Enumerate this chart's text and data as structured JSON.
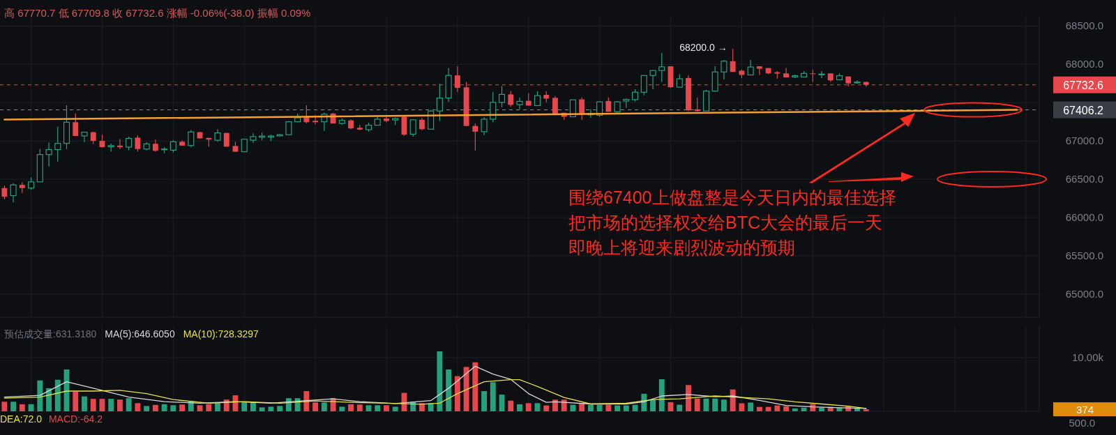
{
  "chart_data": [
    {
      "type": "candlestick",
      "categories": [
        null,
        null,
        null,
        null,
        null,
        null,
        null,
        null,
        null,
        null,
        null,
        null,
        null,
        null,
        null,
        null,
        null,
        null,
        null,
        null,
        null,
        null,
        null,
        null,
        null,
        null,
        null,
        null,
        null,
        null,
        null,
        null,
        null,
        null,
        null,
        null,
        null,
        null,
        null,
        null,
        null,
        null,
        null,
        null,
        null,
        null,
        null,
        null,
        null,
        null,
        null,
        null,
        null,
        null,
        null,
        null,
        null,
        null,
        null,
        null,
        null,
        null,
        null,
        null,
        null,
        null,
        null,
        null,
        null,
        null,
        null,
        null,
        null,
        null,
        null,
        null,
        null,
        null,
        null,
        null,
        null,
        null,
        null,
        null,
        null,
        null,
        null,
        null,
        null,
        null,
        null,
        null,
        null,
        null,
        null,
        null,
        null,
        null,
        null,
        null,
        null,
        null,
        null,
        null,
        null,
        null,
        null,
        null,
        null,
        null,
        null,
        null,
        null,
        null,
        null,
        null,
        null
      ],
      "ohlc": [
        [
          66385,
          66417,
          66239,
          66272
        ],
        [
          66287,
          66450,
          66200,
          66427
        ],
        [
          66427,
          66460,
          66320,
          66385
        ],
        [
          66385,
          66525,
          66362,
          66466
        ],
        [
          66466,
          66895,
          66466,
          66823
        ],
        [
          66823,
          66979,
          66667,
          66888
        ],
        [
          66888,
          67187,
          66732,
          66969
        ],
        [
          66969,
          67466,
          66894,
          67245
        ],
        [
          67245,
          67358,
          67066,
          67066
        ],
        [
          67066,
          67120,
          66985,
          67115
        ],
        [
          67115,
          67120,
          66960,
          67001
        ],
        [
          67001,
          67082,
          66915,
          66920
        ],
        [
          66925,
          66965,
          66862,
          66940
        ],
        [
          66940,
          67025,
          66895,
          66920
        ],
        [
          66920,
          67057,
          66880,
          67034
        ],
        [
          67044,
          67076,
          66862,
          66895
        ],
        [
          66895,
          66985,
          66880,
          66963
        ],
        [
          66963,
          67018,
          66862,
          66872
        ],
        [
          66890,
          66920,
          66840,
          66895
        ],
        [
          66880,
          67010,
          66850,
          66990
        ],
        [
          66990,
          67010,
          66940,
          66940
        ],
        [
          66940,
          67144,
          66918,
          67118
        ],
        [
          67115,
          67120,
          67034,
          67034
        ],
        [
          67040,
          67040,
          66925,
          67018
        ],
        [
          67010,
          67154,
          66990,
          67105
        ],
        [
          67105,
          67105,
          66926,
          66926
        ],
        [
          66935,
          66990,
          66860,
          66860
        ],
        [
          66860,
          67023,
          66860,
          67023
        ],
        [
          67010,
          67099,
          66978,
          67057
        ],
        [
          67050,
          67108,
          67010,
          67065
        ],
        [
          67050,
          67082,
          67000,
          67065
        ],
        [
          67066,
          67090,
          67060,
          67082
        ],
        [
          67082,
          67260,
          67082,
          67251
        ],
        [
          67251,
          67358,
          67245,
          67303
        ],
        [
          67310,
          67466,
          67229,
          67245
        ],
        [
          67264,
          67336,
          67219,
          67245
        ],
        [
          67251,
          67368,
          67131,
          67349
        ],
        [
          67358,
          67368,
          67229,
          67229
        ],
        [
          67229,
          67293,
          67213,
          67268
        ],
        [
          67268,
          67284,
          67154,
          67164
        ],
        [
          67173,
          67212,
          67141,
          67148
        ],
        [
          67148,
          67238,
          67122,
          67206
        ],
        [
          67206,
          67326,
          67206,
          67284
        ],
        [
          67293,
          67342,
          67245,
          67261
        ],
        [
          67274,
          67306,
          67209,
          67293
        ],
        [
          67316,
          67339,
          67066,
          67083
        ],
        [
          67089,
          67277,
          67057,
          67277
        ],
        [
          67277,
          67303,
          67141,
          67154
        ],
        [
          67154,
          67407,
          67154,
          67391
        ],
        [
          67391,
          67748,
          67261,
          67560
        ],
        [
          67560,
          67953,
          67511,
          67856
        ],
        [
          67856,
          67976,
          67641,
          67693
        ],
        [
          67700,
          67771,
          67196,
          67196
        ],
        [
          67196,
          67229,
          66872,
          67121
        ],
        [
          67121,
          67310,
          67075,
          67284
        ],
        [
          67284,
          67641,
          67245,
          67504
        ],
        [
          67504,
          67716,
          67440,
          67608
        ],
        [
          67608,
          67650,
          67446,
          67472
        ],
        [
          67475,
          67568,
          67413,
          67517
        ],
        [
          67524,
          67624,
          67462,
          67462
        ],
        [
          67462,
          67650,
          67462,
          67592
        ],
        [
          67602,
          67650,
          67504,
          67553
        ],
        [
          67563,
          67586,
          67336,
          67358
        ],
        [
          67368,
          67368,
          67277,
          67316
        ],
        [
          67316,
          67537,
          67316,
          67537
        ],
        [
          67543,
          67569,
          67277,
          67342
        ],
        [
          67342,
          67413,
          67303,
          67358
        ],
        [
          67336,
          67521,
          67316,
          67511
        ],
        [
          67521,
          67569,
          67381,
          67381
        ],
        [
          67381,
          67521,
          67368,
          67511
        ],
        [
          67521,
          67553,
          67433,
          67543
        ],
        [
          67540,
          67676,
          67514,
          67637
        ],
        [
          67637,
          67855,
          67595,
          67855
        ],
        [
          67855,
          67920,
          67676,
          67920
        ],
        [
          67920,
          68148,
          67771,
          67968
        ],
        [
          67975,
          67975,
          67692,
          67702
        ],
        [
          67702,
          67871,
          67702,
          67812
        ],
        [
          67822,
          67855,
          67391,
          67400
        ],
        [
          67413,
          67569,
          67381,
          67391
        ],
        [
          67391,
          67667,
          67391,
          67651
        ],
        [
          67651,
          67976,
          67651,
          67901
        ],
        [
          67901,
          68057,
          67804,
          68041
        ],
        [
          68041,
          68200,
          67901,
          67901
        ],
        [
          67917,
          67933,
          67822,
          67862
        ],
        [
          67862,
          68057,
          67862,
          67966
        ],
        [
          67975,
          67975,
          67862,
          67943
        ],
        [
          67952,
          67952,
          67873,
          67882
        ],
        [
          67897,
          67912,
          67812,
          67879
        ],
        [
          67882,
          67952,
          67830,
          67830
        ],
        [
          67836,
          67867,
          67821,
          67852
        ],
        [
          67836,
          67912,
          67836,
          67882
        ],
        [
          67882,
          67927,
          67770,
          67873
        ],
        [
          67866,
          67912,
          67821,
          67873
        ],
        [
          67882,
          67882,
          67770,
          67791
        ],
        [
          67800,
          67882,
          67800,
          67852
        ],
        [
          67842,
          67842,
          67715,
          67752
        ],
        [
          67758,
          67791,
          67745,
          67770
        ],
        [
          67770.6,
          67770.7,
          67709.8,
          67732.6
        ],
        null,
        null,
        null,
        null,
        null,
        null,
        null,
        null,
        null,
        null,
        null,
        null,
        null,
        null,
        null,
        null,
        null,
        null,
        null
      ],
      "colors": [
        "#e5474c",
        "#26a17b",
        "#e5474c",
        "#26a17b",
        "#26a17b",
        "#26a17b",
        "#26a17b",
        "#26a17b",
        "#e5474c",
        "#26a17b",
        "#e5474c",
        "#e5474c",
        "#26a17b",
        "#e5474c",
        "#26a17b",
        "#e5474c",
        "#26a17b",
        "#e5474c",
        "#26a17b",
        "#26a17b",
        "#e5474c",
        "#26a17b",
        "#e5474c",
        "#e5474c",
        "#26a17b",
        "#e5474c",
        "#e5474c",
        "#26a17b",
        "#26a17b",
        "#26a17b",
        "#26a17b",
        "#26a17b",
        "#26a17b",
        "#26a17b",
        "#e5474c",
        "#e5474c",
        "#26a17b",
        "#e5474c",
        "#26a17b",
        "#e5474c",
        "#e5474c",
        "#26a17b",
        "#26a17b",
        "#e5474c",
        "#26a17b",
        "#e5474c",
        "#26a17b",
        "#e5474c",
        "#26a17b",
        "#26a17b",
        "#26a17b",
        "#e5474c",
        "#e5474c",
        "#e5474c",
        "#26a17b",
        "#26a17b",
        "#26a17b",
        "#e5474c",
        "#26a17b",
        "#e5474c",
        "#26a17b",
        "#e5474c",
        "#e5474c",
        "#e5474c",
        "#26a17b",
        "#e5474c",
        "#26a17b",
        "#26a17b",
        "#e5474c",
        "#26a17b",
        "#26a17b",
        "#26a17b",
        "#26a17b",
        "#26a17b",
        "#26a17b",
        "#e5474c",
        "#26a17b",
        "#e5474c",
        "#e5474c",
        "#26a17b",
        "#26a17b",
        "#26a17b",
        "#e5474c",
        "#e5474c",
        "#26a17b",
        "#e5474c",
        "#e5474c",
        "#e5474c",
        "#e5474c",
        "#26a17b",
        "#26a17b",
        "#e5474c",
        "#26a17b",
        "#e5474c",
        "#26a17b",
        "#e5474c",
        "#26a17b",
        "#e5474c",
        null,
        null,
        null,
        null,
        null,
        null,
        null,
        null,
        null,
        null,
        null,
        null,
        null,
        null,
        null,
        null,
        null,
        null,
        null
      ],
      "series": [
        {
          "type": "line",
          "color": "#f5a030",
          "values": [
            67280,
            null,
            null,
            null,
            null,
            null,
            null,
            null,
            null,
            null,
            null,
            null,
            null,
            null,
            null,
            null,
            null,
            null,
            null,
            null,
            null,
            null,
            null,
            null,
            null,
            null,
            null,
            null,
            null,
            null,
            null,
            null,
            null,
            null,
            null,
            null,
            null,
            null,
            null,
            null,
            null,
            null,
            null,
            null,
            null,
            null,
            null,
            null,
            null,
            null,
            null,
            null,
            null,
            null,
            null,
            null,
            null,
            null,
            null,
            null,
            null,
            null,
            null,
            null,
            null,
            null,
            null,
            null,
            null,
            null,
            null,
            null,
            null,
            null,
            null,
            null,
            null,
            null,
            null,
            null,
            null,
            null,
            null,
            null,
            null,
            null,
            null,
            null,
            null,
            null,
            null,
            null,
            null,
            null,
            null,
            null,
            null,
            null,
            null,
            null,
            null,
            null,
            null,
            null,
            null,
            null,
            null,
            null,
            null,
            null,
            null,
            null,
            null,
            null,
            67406,
            null,
            null
          ]
        }
      ],
      "ylim": [
        64700,
        68640
      ],
      "yticks": [
        {
          "value": 65000,
          "label": "65000.0"
        },
        {
          "value": 65500,
          "label": "65500.0"
        },
        {
          "value": 66000,
          "label": "66000.0"
        },
        {
          "value": 66500,
          "label": "66500.0"
        },
        {
          "value": 67000,
          "label": "67000.0"
        },
        {
          "value": 67500,
          "label": null
        },
        {
          "value": 68000,
          "label": "68000.0"
        },
        {
          "value": 68500,
          "label": "68500.0"
        }
      ],
      "tick_labels": "y",
      "grid": true,
      "ref_lines": [
        {
          "axis": "y",
          "value": 67732.6,
          "label": "67732.6",
          "color": "#e5474c",
          "line_style": "dashed"
        },
        {
          "axis": "y",
          "value": 67406.2,
          "label": "67406.2",
          "color": "#8a8d93",
          "line_style": "dashed"
        }
      ],
      "annotations": [
        "高 67770.7 低 67709.8 收 67732.6 涨幅 -0.06%(-38.0) 振幅 0.09%",
        "68200.0 →",
        "围绕67400上做盘整是今天日内的最佳选择",
        "把市场的选择权交给BTC大会的最后一天",
        "即晚上将迎来剧烈波动的预期"
      ]
    },
    {
      "type": "bar",
      "categories": [
        null,
        null,
        null,
        null,
        null,
        null,
        null,
        null,
        null,
        null,
        null,
        null,
        null,
        null,
        null,
        null,
        null,
        null,
        null,
        null,
        null,
        null,
        null,
        null,
        null,
        null,
        null,
        null,
        null,
        null,
        null,
        null,
        null,
        null,
        null,
        null,
        null,
        null,
        null,
        null,
        null,
        null,
        null,
        null,
        null,
        null,
        null,
        null,
        null,
        null,
        null,
        null,
        null,
        null,
        null,
        null,
        null,
        null,
        null,
        null,
        null,
        null,
        null,
        null,
        null,
        null,
        null,
        null,
        null,
        null,
        null,
        null,
        null,
        null,
        null,
        null,
        null,
        null,
        null,
        null,
        null,
        null,
        null,
        null,
        null,
        null,
        null,
        null,
        null,
        null,
        null,
        null,
        null,
        null,
        null,
        null,
        null,
        null,
        null,
        null,
        null,
        null,
        null,
        null,
        null,
        null,
        null,
        null,
        null,
        null,
        null,
        null,
        null,
        null,
        null,
        null,
        null
      ],
      "values": [
        1790,
        1790,
        1320,
        1320,
        5760,
        4300,
        5890,
        7810,
        3640,
        2780,
        2320,
        2320,
        2320,
        2190,
        2450,
        1520,
        990,
        1190,
        1320,
        1130,
        1260,
        1920,
        1130,
        1320,
        1660,
        2190,
        2980,
        1660,
        1660,
        730,
        860,
        990,
        2450,
        2450,
        3770,
        1660,
        1660,
        2450,
        860,
        1320,
        1260,
        1130,
        1130,
        1130,
        860,
        3440,
        1790,
        1520,
        1520,
        11190,
        7810,
        6560,
        8280,
        9140,
        3770,
        5430,
        3110,
        1990,
        1320,
        1520,
        1520,
        1090,
        2180,
        2180,
        1220,
        1560,
        1220,
        1220,
        1220,
        1090,
        1090,
        1220,
        3270,
        2180,
        5990,
        1700,
        1220,
        4900,
        2380,
        2380,
        2380,
        2180,
        4080,
        1500,
        1630,
        820,
        820,
        1090,
        950,
        540,
        680,
        1360,
        680,
        820,
        680,
        950,
        540,
        374,
        null,
        null,
        null,
        null,
        null,
        null,
        null,
        null,
        null,
        null,
        null,
        null,
        null,
        null,
        null,
        null,
        null,
        null,
        null
      ],
      "colors": [
        "#e5474c",
        "#26a17b",
        "#e5474c",
        "#26a17b",
        "#26a17b",
        "#26a17b",
        "#26a17b",
        "#26a17b",
        "#e5474c",
        "#26a17b",
        "#e5474c",
        "#e5474c",
        "#26a17b",
        "#e5474c",
        "#26a17b",
        "#e5474c",
        "#26a17b",
        "#e5474c",
        "#26a17b",
        "#26a17b",
        "#e5474c",
        "#26a17b",
        "#e5474c",
        "#e5474c",
        "#26a17b",
        "#e5474c",
        "#e5474c",
        "#26a17b",
        "#26a17b",
        "#26a17b",
        "#26a17b",
        "#26a17b",
        "#26a17b",
        "#26a17b",
        "#e5474c",
        "#e5474c",
        "#26a17b",
        "#e5474c",
        "#26a17b",
        "#e5474c",
        "#e5474c",
        "#26a17b",
        "#26a17b",
        "#e5474c",
        "#26a17b",
        "#e5474c",
        "#26a17b",
        "#e5474c",
        "#26a17b",
        "#26a17b",
        "#26a17b",
        "#e5474c",
        "#e5474c",
        "#e5474c",
        "#26a17b",
        "#26a17b",
        "#26a17b",
        "#e5474c",
        "#26a17b",
        "#e5474c",
        "#26a17b",
        "#e5474c",
        "#e5474c",
        "#e5474c",
        "#26a17b",
        "#e5474c",
        "#26a17b",
        "#26a17b",
        "#e5474c",
        "#26a17b",
        "#26a17b",
        "#26a17b",
        "#26a17b",
        "#26a17b",
        "#26a17b",
        "#e5474c",
        "#26a17b",
        "#e5474c",
        "#e5474c",
        "#26a17b",
        "#26a17b",
        "#26a17b",
        "#e5474c",
        "#e5474c",
        "#26a17b",
        "#e5474c",
        "#e5474c",
        "#e5474c",
        "#e5474c",
        "#26a17b",
        "#26a17b",
        "#e5474c",
        "#26a17b",
        "#e5474c",
        "#26a17b",
        "#e5474c",
        "#26a17b",
        "#e5474c",
        null,
        null,
        null,
        null,
        null,
        null,
        null,
        null,
        null,
        null,
        null,
        null,
        null,
        null,
        null,
        null,
        null,
        null,
        null
      ],
      "series": [
        {
          "type": "line",
          "name": "MA(5):646.6050",
          "color": "#d8d8d8",
          "values": [
            2650,
            null,
            null,
            null,
            2980,
            null,
            null,
            5500,
            null,
            null,
            4300,
            null,
            null,
            null,
            2650,
            null,
            null,
            null,
            1790,
            null,
            null,
            null,
            1520,
            null,
            null,
            null,
            1790,
            null,
            null,
            null,
            1520,
            null,
            null,
            null,
            1990,
            null,
            null,
            2320,
            null,
            null,
            1790,
            null,
            null,
            null,
            1460,
            null,
            null,
            null,
            1990,
            null,
            4300,
            null,
            null,
            8410,
            null,
            6950,
            null,
            5960,
            null,
            3310,
            null,
            1660,
            1770,
            null,
            null,
            null,
            1360,
            null,
            null,
            null,
            1360,
            null,
            1770,
            null,
            2860,
            null,
            null,
            3130,
            null,
            null,
            2720,
            null,
            2860,
            null,
            null,
            2040,
            null,
            null,
            1090,
            null,
            null,
            820,
            null,
            null,
            680,
            null,
            null,
            540,
            null,
            null,
            null,
            null,
            null,
            null,
            null,
            null,
            null,
            null,
            null,
            null,
            null,
            null,
            null,
            null,
            null,
            null,
            null
          ]
        },
        {
          "type": "line",
          "name": "MA(10):728.3297",
          "color": "#e6e04a",
          "values": [
            2450,
            null,
            null,
            null,
            2650,
            null,
            null,
            3770,
            null,
            null,
            3770,
            null,
            null,
            3910,
            null,
            null,
            3310,
            null,
            null,
            2190,
            null,
            null,
            null,
            1520,
            null,
            null,
            null,
            1790,
            null,
            null,
            null,
            1520,
            null,
            null,
            null,
            1920,
            null,
            null,
            null,
            1660,
            null,
            null,
            null,
            1520,
            null,
            null,
            null,
            1320,
            null,
            1520,
            null,
            3310,
            null,
            null,
            5500,
            null,
            null,
            5890,
            5890,
            null,
            4640,
            null,
            null,
            2590,
            null,
            null,
            1360,
            null,
            null,
            null,
            1500,
            null,
            null,
            2180,
            null,
            null,
            2310,
            null,
            null,
            null,
            2860,
            null,
            null,
            2590,
            null,
            null,
            2310,
            null,
            null,
            1770,
            null,
            null,
            1360,
            null,
            null,
            950,
            null,
            540,
            null,
            null,
            null,
            null,
            null,
            null,
            null,
            null,
            null,
            null,
            null,
            null,
            null,
            null,
            null,
            null,
            null,
            null,
            null
          ]
        }
      ],
      "ylim": [
        0,
        16000
      ],
      "yticks": [
        {
          "value": 10000,
          "label": "10.00k"
        }
      ],
      "tick_labels": "y",
      "grid": true,
      "legend": "top left",
      "annotations": [
        "预估成交量:631.3180",
        "374"
      ]
    },
    {
      "type": "other",
      "annotations": [
        "DEA:72.0",
        "MACD:-64.2",
        "500.0"
      ]
    }
  ]
}
